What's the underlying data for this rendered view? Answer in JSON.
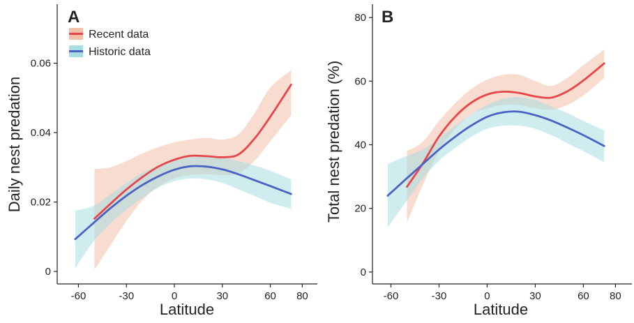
{
  "colors": {
    "recent_line": "#e8454a",
    "recent_band": "#f2bfa8",
    "historic_line": "#4a62c4",
    "historic_band": "#a8dde2"
  },
  "legend": {
    "recent": "Recent data",
    "historic": "Historic data"
  },
  "chart_data": [
    {
      "panel": "A",
      "type": "line",
      "xlabel": "Latitude",
      "ylabel": "Daily nest predation",
      "xlim": [
        -65,
        82
      ],
      "ylim": [
        -0.002,
        0.075
      ],
      "xticks": [
        -60,
        -30,
        0,
        30,
        60,
        80
      ],
      "xtick_labels": [
        "-60",
        "-30",
        "0",
        "30",
        "60",
        "80"
      ],
      "yticks": [
        0,
        0.02,
        0.04,
        0.06
      ],
      "ytick_labels": [
        "0",
        "0.02",
        "0.04",
        "0.06"
      ],
      "legend_position": "top-left",
      "series": [
        {
          "name": "Recent data",
          "x": [
            -50,
            -40,
            -30,
            -20,
            -10,
            0,
            10,
            20,
            30,
            40,
            50,
            60,
            73
          ],
          "y": [
            0.0152,
            0.0195,
            0.0236,
            0.0272,
            0.0302,
            0.0322,
            0.0333,
            0.0332,
            0.0329,
            0.0337,
            0.0382,
            0.0446,
            0.0538
          ],
          "lower": [
            0.0005,
            0.0075,
            0.0145,
            0.0205,
            0.0245,
            0.0268,
            0.0278,
            0.028,
            0.0278,
            0.0282,
            0.0318,
            0.0375,
            0.045
          ],
          "upper": [
            0.0295,
            0.03,
            0.0318,
            0.034,
            0.0358,
            0.0372,
            0.038,
            0.0385,
            0.038,
            0.0395,
            0.0455,
            0.053,
            0.058
          ]
        },
        {
          "name": "Historic data",
          "x": [
            -62,
            -50,
            -40,
            -30,
            -20,
            -10,
            0,
            10,
            20,
            30,
            40,
            50,
            60,
            73
          ],
          "y": [
            0.0093,
            0.0142,
            0.0182,
            0.0218,
            0.0249,
            0.0274,
            0.0293,
            0.0303,
            0.0302,
            0.0294,
            0.028,
            0.0263,
            0.0246,
            0.0223
          ],
          "lower": [
            0.001,
            0.009,
            0.0138,
            0.0178,
            0.0212,
            0.0242,
            0.026,
            0.0268,
            0.0265,
            0.0255,
            0.0237,
            0.0218,
            0.0198,
            0.018
          ],
          "upper": [
            0.0175,
            0.019,
            0.0222,
            0.0255,
            0.0284,
            0.0305,
            0.0322,
            0.033,
            0.0333,
            0.0328,
            0.0318,
            0.0305,
            0.029,
            0.0265
          ]
        }
      ]
    },
    {
      "panel": "B",
      "type": "line",
      "xlabel": "Latitude",
      "ylabel": "Total nest predation (%)",
      "xlim": [
        -65,
        82
      ],
      "ylim": [
        -2,
        82
      ],
      "xticks": [
        -60,
        -30,
        0,
        30,
        60,
        80
      ],
      "xtick_labels": [
        "-60",
        "-30",
        "0",
        "30",
        "60",
        "80"
      ],
      "yticks": [
        0,
        20,
        40,
        60,
        80
      ],
      "ytick_labels": [
        "0",
        "20",
        "40",
        "60",
        "80"
      ],
      "series": [
        {
          "name": "Recent data",
          "x": [
            -50,
            -40,
            -30,
            -20,
            -10,
            0,
            10,
            20,
            30,
            40,
            50,
            60,
            73
          ],
          "y": [
            26.8,
            34.2,
            42.6,
            48.8,
            53.2,
            55.8,
            56.7,
            56.3,
            55.2,
            54.8,
            56.8,
            60.2,
            65.6
          ],
          "lower": [
            15.5,
            27.5,
            38.0,
            45.0,
            49.5,
            51.5,
            52.5,
            52.5,
            51.5,
            51.0,
            52.5,
            55.5,
            61.0
          ],
          "upper": [
            38.0,
            41.0,
            47.5,
            53.0,
            57.5,
            60.5,
            62.0,
            62.0,
            60.0,
            58.5,
            61.0,
            65.0,
            70.0
          ]
        },
        {
          "name": "Historic data",
          "x": [
            -62,
            -50,
            -40,
            -30,
            -20,
            -10,
            0,
            10,
            20,
            30,
            40,
            50,
            60,
            73
          ],
          "y": [
            24.0,
            29.5,
            34.0,
            38.5,
            42.5,
            46.0,
            48.8,
            50.2,
            50.4,
            49.3,
            47.6,
            45.4,
            43.0,
            39.6
          ],
          "lower": [
            14.0,
            22.5,
            29.5,
            35.0,
            39.0,
            42.5,
            45.0,
            46.0,
            46.0,
            45.0,
            43.0,
            40.5,
            38.0,
            34.5
          ],
          "upper": [
            34.0,
            36.5,
            38.5,
            42.0,
            46.0,
            49.5,
            52.5,
            54.5,
            55.0,
            54.0,
            52.0,
            50.0,
            47.5,
            44.5
          ]
        }
      ]
    }
  ]
}
